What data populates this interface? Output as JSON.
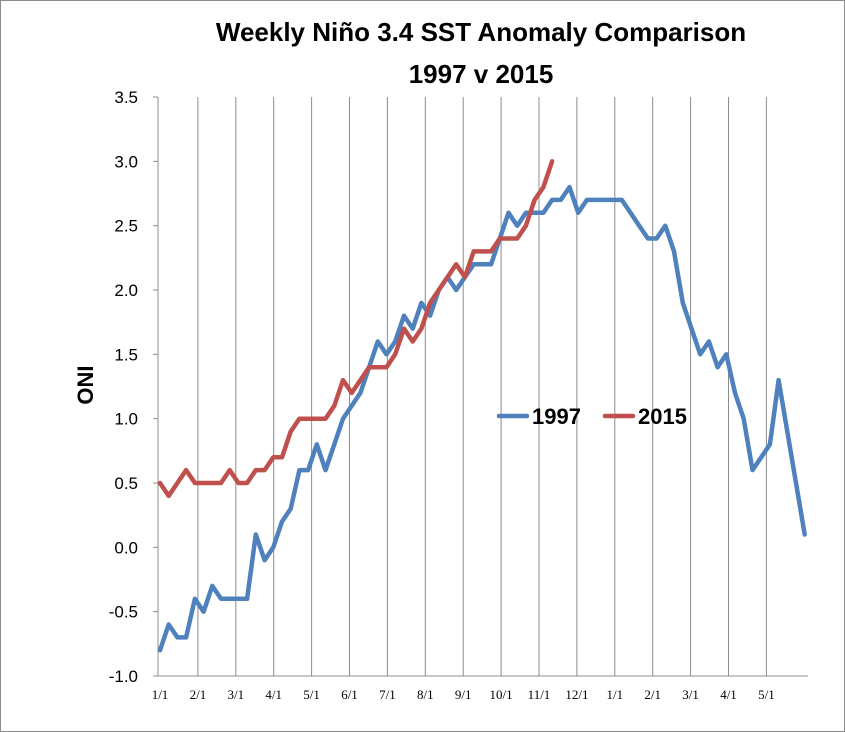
{
  "chart_data": {
    "type": "line",
    "title_line1": "Weekly Niño 3.4 SST Anomaly Comparison",
    "title_line2": "1997 v 2015",
    "ylabel": "ONI",
    "ylim": [
      -1.0,
      3.5
    ],
    "yticks": [
      "-1.0",
      "-0.5",
      "0.0",
      "0.5",
      "1.0",
      "1.5",
      "2.0",
      "2.5",
      "3.0",
      "3.5"
    ],
    "ytick_values": [
      -1.0,
      -0.5,
      0.0,
      0.5,
      1.0,
      1.5,
      2.0,
      2.5,
      3.0,
      3.5
    ],
    "xticks": [
      "1/1",
      "2/1",
      "3/1",
      "4/1",
      "5/1",
      "6/1",
      "7/1",
      "8/1",
      "9/1",
      "10/1",
      "11/1",
      "12/1",
      "1/1",
      "2/1",
      "3/1",
      "4/1",
      "5/1"
    ],
    "grid": "vertical",
    "legend_position": "center-right",
    "series": [
      {
        "name": "1997",
        "color": "#4f81bd",
        "values": [
          -0.8,
          -0.6,
          -0.7,
          -0.7,
          -0.4,
          -0.5,
          -0.3,
          -0.4,
          -0.4,
          -0.4,
          -0.4,
          0.1,
          -0.1,
          0.0,
          0.2,
          0.3,
          0.6,
          0.6,
          0.8,
          0.6,
          0.8,
          1.0,
          1.1,
          1.2,
          1.4,
          1.6,
          1.5,
          1.6,
          1.8,
          1.7,
          1.9,
          1.8,
          2.0,
          2.1,
          2.0,
          2.1,
          2.2,
          2.2,
          2.2,
          2.4,
          2.6,
          2.5,
          2.6,
          2.6,
          2.6,
          2.7,
          2.7,
          2.8,
          2.6,
          2.7,
          2.7,
          2.7,
          2.7,
          2.7,
          2.6,
          2.5,
          2.4,
          2.4,
          2.5,
          2.3,
          1.9,
          1.7,
          1.5,
          1.6,
          1.4,
          1.5,
          1.2,
          1.0,
          0.6,
          0.7,
          0.8,
          1.3,
          0.9,
          0.5,
          0.1
        ]
      },
      {
        "name": "2015",
        "color": "#c0504d",
        "values": [
          0.5,
          0.4,
          0.5,
          0.6,
          0.5,
          0.5,
          0.5,
          0.5,
          0.6,
          0.5,
          0.5,
          0.6,
          0.6,
          0.7,
          0.7,
          0.9,
          1.0,
          1.0,
          1.0,
          1.0,
          1.1,
          1.3,
          1.2,
          1.3,
          1.4,
          1.4,
          1.4,
          1.5,
          1.7,
          1.6,
          1.7,
          1.9,
          2.0,
          2.1,
          2.2,
          2.1,
          2.3,
          2.3,
          2.3,
          2.4,
          2.4,
          2.4,
          2.5,
          2.7,
          2.8,
          3.0
        ]
      }
    ]
  }
}
